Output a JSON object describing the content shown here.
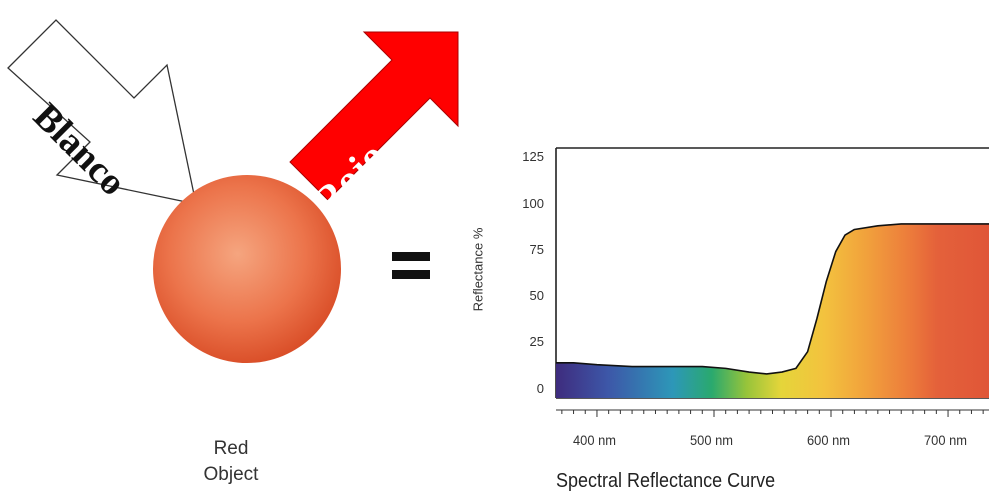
{
  "arrows": {
    "white_light_label": "Blanco",
    "red_light_label": "Rojo",
    "white_fill": "#ffffff",
    "red_fill": "#ff0000"
  },
  "object": {
    "caption_line1": "Red",
    "caption_line2": "Object",
    "color": "#e8633c"
  },
  "equals_symbol": "=",
  "chart_data": {
    "type": "line",
    "title": "Spectral Reflectance Curve",
    "xlabel": "",
    "ylabel": "Reflectance %",
    "xlim": [
      365,
      735
    ],
    "ylim": [
      -5,
      130
    ],
    "y_ticks": [
      0,
      25,
      50,
      75,
      100,
      125
    ],
    "y_tick_labels": [
      "0",
      "25",
      "50",
      "75",
      "100",
      "125"
    ],
    "x_ticks": [
      400,
      500,
      600,
      700
    ],
    "x_tick_labels": [
      "400 nm",
      "500 nm",
      "600 nm",
      "700 nm"
    ],
    "grid": false,
    "series": [
      {
        "x": [
          365,
          380,
          400,
          430,
          460,
          490,
          510,
          530,
          545,
          558,
          570,
          580,
          588,
          596,
          604,
          612,
          620,
          640,
          660,
          690,
          720,
          735
        ],
        "y": [
          14,
          14,
          13,
          12,
          12,
          12,
          11,
          9,
          8,
          9,
          11,
          20,
          38,
          58,
          74,
          83,
          86,
          88,
          89,
          89,
          89,
          89
        ]
      }
    ]
  }
}
